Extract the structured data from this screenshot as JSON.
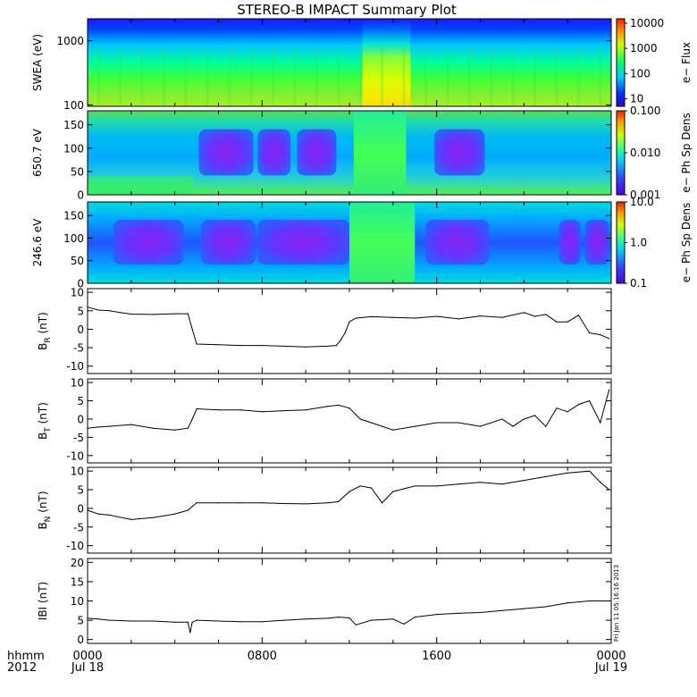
{
  "title": "STEREO-B IMPACT Summary Plot",
  "stamp": "Fri Jan 11 05:16:16 2013",
  "time_axis": {
    "corner_top": "hhmm",
    "corner_bottom": "2012",
    "ticks": [
      {
        "hours": 0,
        "label": "0000",
        "sublabel": "Jul 18"
      },
      {
        "hours": 8,
        "label": "0800",
        "sublabel": ""
      },
      {
        "hours": 16,
        "label": "1600",
        "sublabel": ""
      },
      {
        "hours": 24,
        "label": "0000",
        "sublabel": "Jul 19"
      }
    ],
    "range_hours": [
      0,
      24
    ]
  },
  "chart_data": [
    {
      "type": "heatmap",
      "ylabel": "SWEA (eV)",
      "y_scale": "log",
      "ylim": [
        95,
        2200
      ],
      "yticks": [
        {
          "v": 100,
          "label": "100"
        },
        {
          "v": 1000,
          "label": "1000"
        }
      ],
      "colorbar": {
        "label": "e− Flux",
        "scale": "log",
        "ticks": [
          "10",
          "100",
          "1000",
          "10000"
        ],
        "range": [
          5,
          15000
        ]
      },
      "description_of_pattern": "flux increases toward low energy; enhanced at low energy ~12.7-15 h",
      "region_events": [
        [
          12.6,
          14.8
        ]
      ]
    },
    {
      "type": "heatmap",
      "ylabel": "650.7 eV",
      "y_scale": "linear",
      "ylim": [
        0,
        180
      ],
      "yticks": [
        {
          "v": 0,
          "label": "0"
        },
        {
          "v": 50,
          "label": "50"
        },
        {
          "v": 100,
          "label": "100"
        },
        {
          "v": 150,
          "label": "150"
        }
      ],
      "colorbar": {
        "label": "e− Ph Sp Dens",
        "scale": "log",
        "ticks": [
          "0.001",
          "0.010",
          "0.100"
        ],
        "range": [
          0.001,
          0.1
        ]
      },
      "dips": [
        [
          5.1,
          7.6
        ],
        [
          7.8,
          9.3
        ],
        [
          9.6,
          11.4
        ],
        [
          15.9,
          18.2
        ]
      ]
    },
    {
      "type": "heatmap",
      "ylabel": "246.6 eV",
      "y_scale": "linear",
      "ylim": [
        0,
        180
      ],
      "yticks": [
        {
          "v": 0,
          "label": "0"
        },
        {
          "v": 50,
          "label": "50"
        },
        {
          "v": 100,
          "label": "100"
        },
        {
          "v": 150,
          "label": "150"
        }
      ],
      "colorbar": {
        "label": "e− Ph Sp Dens",
        "scale": "log",
        "ticks": [
          "0.1",
          "1.0",
          "10.0"
        ],
        "range": [
          0.1,
          10
        ]
      },
      "dips": [
        [
          1.2,
          4.4
        ],
        [
          5.2,
          7.7
        ],
        [
          7.8,
          12.0
        ],
        [
          15.5,
          18.4
        ],
        [
          21.6,
          22.6
        ],
        [
          22.8,
          23.9
        ]
      ]
    },
    {
      "type": "line",
      "ylabel": "B_R (nT)",
      "ylabel_main": "B",
      "ylabel_sub": "R",
      "ylabel_unit": "(nT)",
      "ylim": [
        -12,
        11
      ],
      "yticks": [
        -10,
        -5,
        0,
        5,
        10
      ],
      "x": [
        0,
        0.5,
        1,
        1.5,
        2,
        3,
        4,
        4.6,
        4.8,
        5,
        6,
        7,
        8,
        9,
        10,
        11,
        11.4,
        11.6,
        11.8,
        12,
        12.3,
        13,
        14,
        15,
        16,
        17,
        18,
        19,
        20,
        20.5,
        21,
        21.5,
        22,
        22.5,
        23,
        23.5,
        23.9
      ],
      "y": [
        6,
        5.2,
        5,
        4.5,
        4.1,
        4,
        4.2,
        4.2,
        0,
        -4,
        -4.2,
        -4.4,
        -4.4,
        -4.6,
        -4.8,
        -4.6,
        -4.4,
        -3,
        -1,
        2,
        3,
        3.4,
        3.2,
        3,
        3.5,
        2.8,
        3.6,
        3.2,
        4.5,
        3.5,
        4,
        2,
        2,
        3.8,
        -1,
        -1.5,
        -2.5
      ]
    },
    {
      "type": "line",
      "ylabel": "B_T (nT)",
      "ylabel_main": "B",
      "ylabel_sub": "T",
      "ylabel_unit": "(nT)",
      "ylim": [
        -12,
        11
      ],
      "yticks": [
        -10,
        -5,
        0,
        5,
        10
      ],
      "x": [
        0,
        0.5,
        1,
        2,
        3,
        4,
        4.6,
        4.8,
        5,
        6,
        7,
        8,
        9,
        10,
        11,
        11.5,
        12,
        12.5,
        13,
        14,
        15,
        16,
        17,
        18,
        19,
        19.5,
        20,
        20.5,
        21,
        21.5,
        22,
        22.5,
        23,
        23.5,
        23.9
      ],
      "y": [
        -2.5,
        -2.2,
        -2,
        -1.5,
        -2.5,
        -3,
        -2.5,
        0,
        2.8,
        2.5,
        2.5,
        2,
        2.3,
        2.5,
        3.5,
        3.8,
        3,
        0,
        -1,
        -3,
        -2,
        -1,
        -1,
        -2,
        0,
        -2,
        0,
        1,
        -2,
        3,
        2,
        4,
        5,
        -1,
        8
      ]
    },
    {
      "type": "line",
      "ylabel": "B_N (nT)",
      "ylabel_main": "B",
      "ylabel_sub": "N",
      "ylabel_unit": "(nT)",
      "ylim": [
        -12,
        11
      ],
      "yticks": [
        -10,
        -5,
        0,
        5,
        10
      ],
      "x": [
        0,
        0.5,
        1,
        2,
        3,
        4,
        4.6,
        4.8,
        5,
        6,
        7,
        8,
        9,
        10,
        11,
        11.5,
        12,
        12.5,
        13,
        13.5,
        14,
        15,
        16,
        17,
        18,
        19,
        20,
        21,
        22,
        23,
        23.5,
        23.9
      ],
      "y": [
        -0.5,
        -1.5,
        -1.8,
        -3,
        -2.5,
        -1.5,
        -0.5,
        0.5,
        1.5,
        1.5,
        1.5,
        1.5,
        1.3,
        1.2,
        1.5,
        1.8,
        4.5,
        6,
        5.5,
        1.5,
        4.5,
        6,
        6,
        6.5,
        7,
        6.5,
        7.5,
        8.5,
        9.5,
        10,
        7,
        5
      ]
    },
    {
      "type": "line",
      "ylabel": "|B| (nT)",
      "ylabel_main": "IBI",
      "ylabel_sub": "",
      "ylabel_unit": "(nT)",
      "ylim": [
        -1,
        21
      ],
      "yticks": [
        0,
        5,
        10,
        15,
        20
      ],
      "x": [
        0,
        0.5,
        1,
        2,
        3,
        4,
        4.6,
        4.7,
        4.8,
        5,
        6,
        7,
        8,
        9,
        10,
        11,
        11.5,
        12,
        12.3,
        13,
        14,
        14.5,
        15,
        16,
        17,
        18,
        19,
        20,
        21,
        22,
        23,
        23.9
      ],
      "y": [
        5.5,
        5.3,
        5,
        4.8,
        4.8,
        4.5,
        4.5,
        1.8,
        4.5,
        5,
        4.8,
        4.6,
        4.6,
        5,
        5.3,
        5.5,
        5.8,
        5.6,
        3.8,
        5,
        5.3,
        4,
        5.8,
        6.5,
        6.8,
        7,
        7.5,
        8,
        8.5,
        9.5,
        10,
        10
      ]
    }
  ],
  "colors": {
    "line": "#000000",
    "frame": "#000000",
    "background": "#ffffff"
  }
}
